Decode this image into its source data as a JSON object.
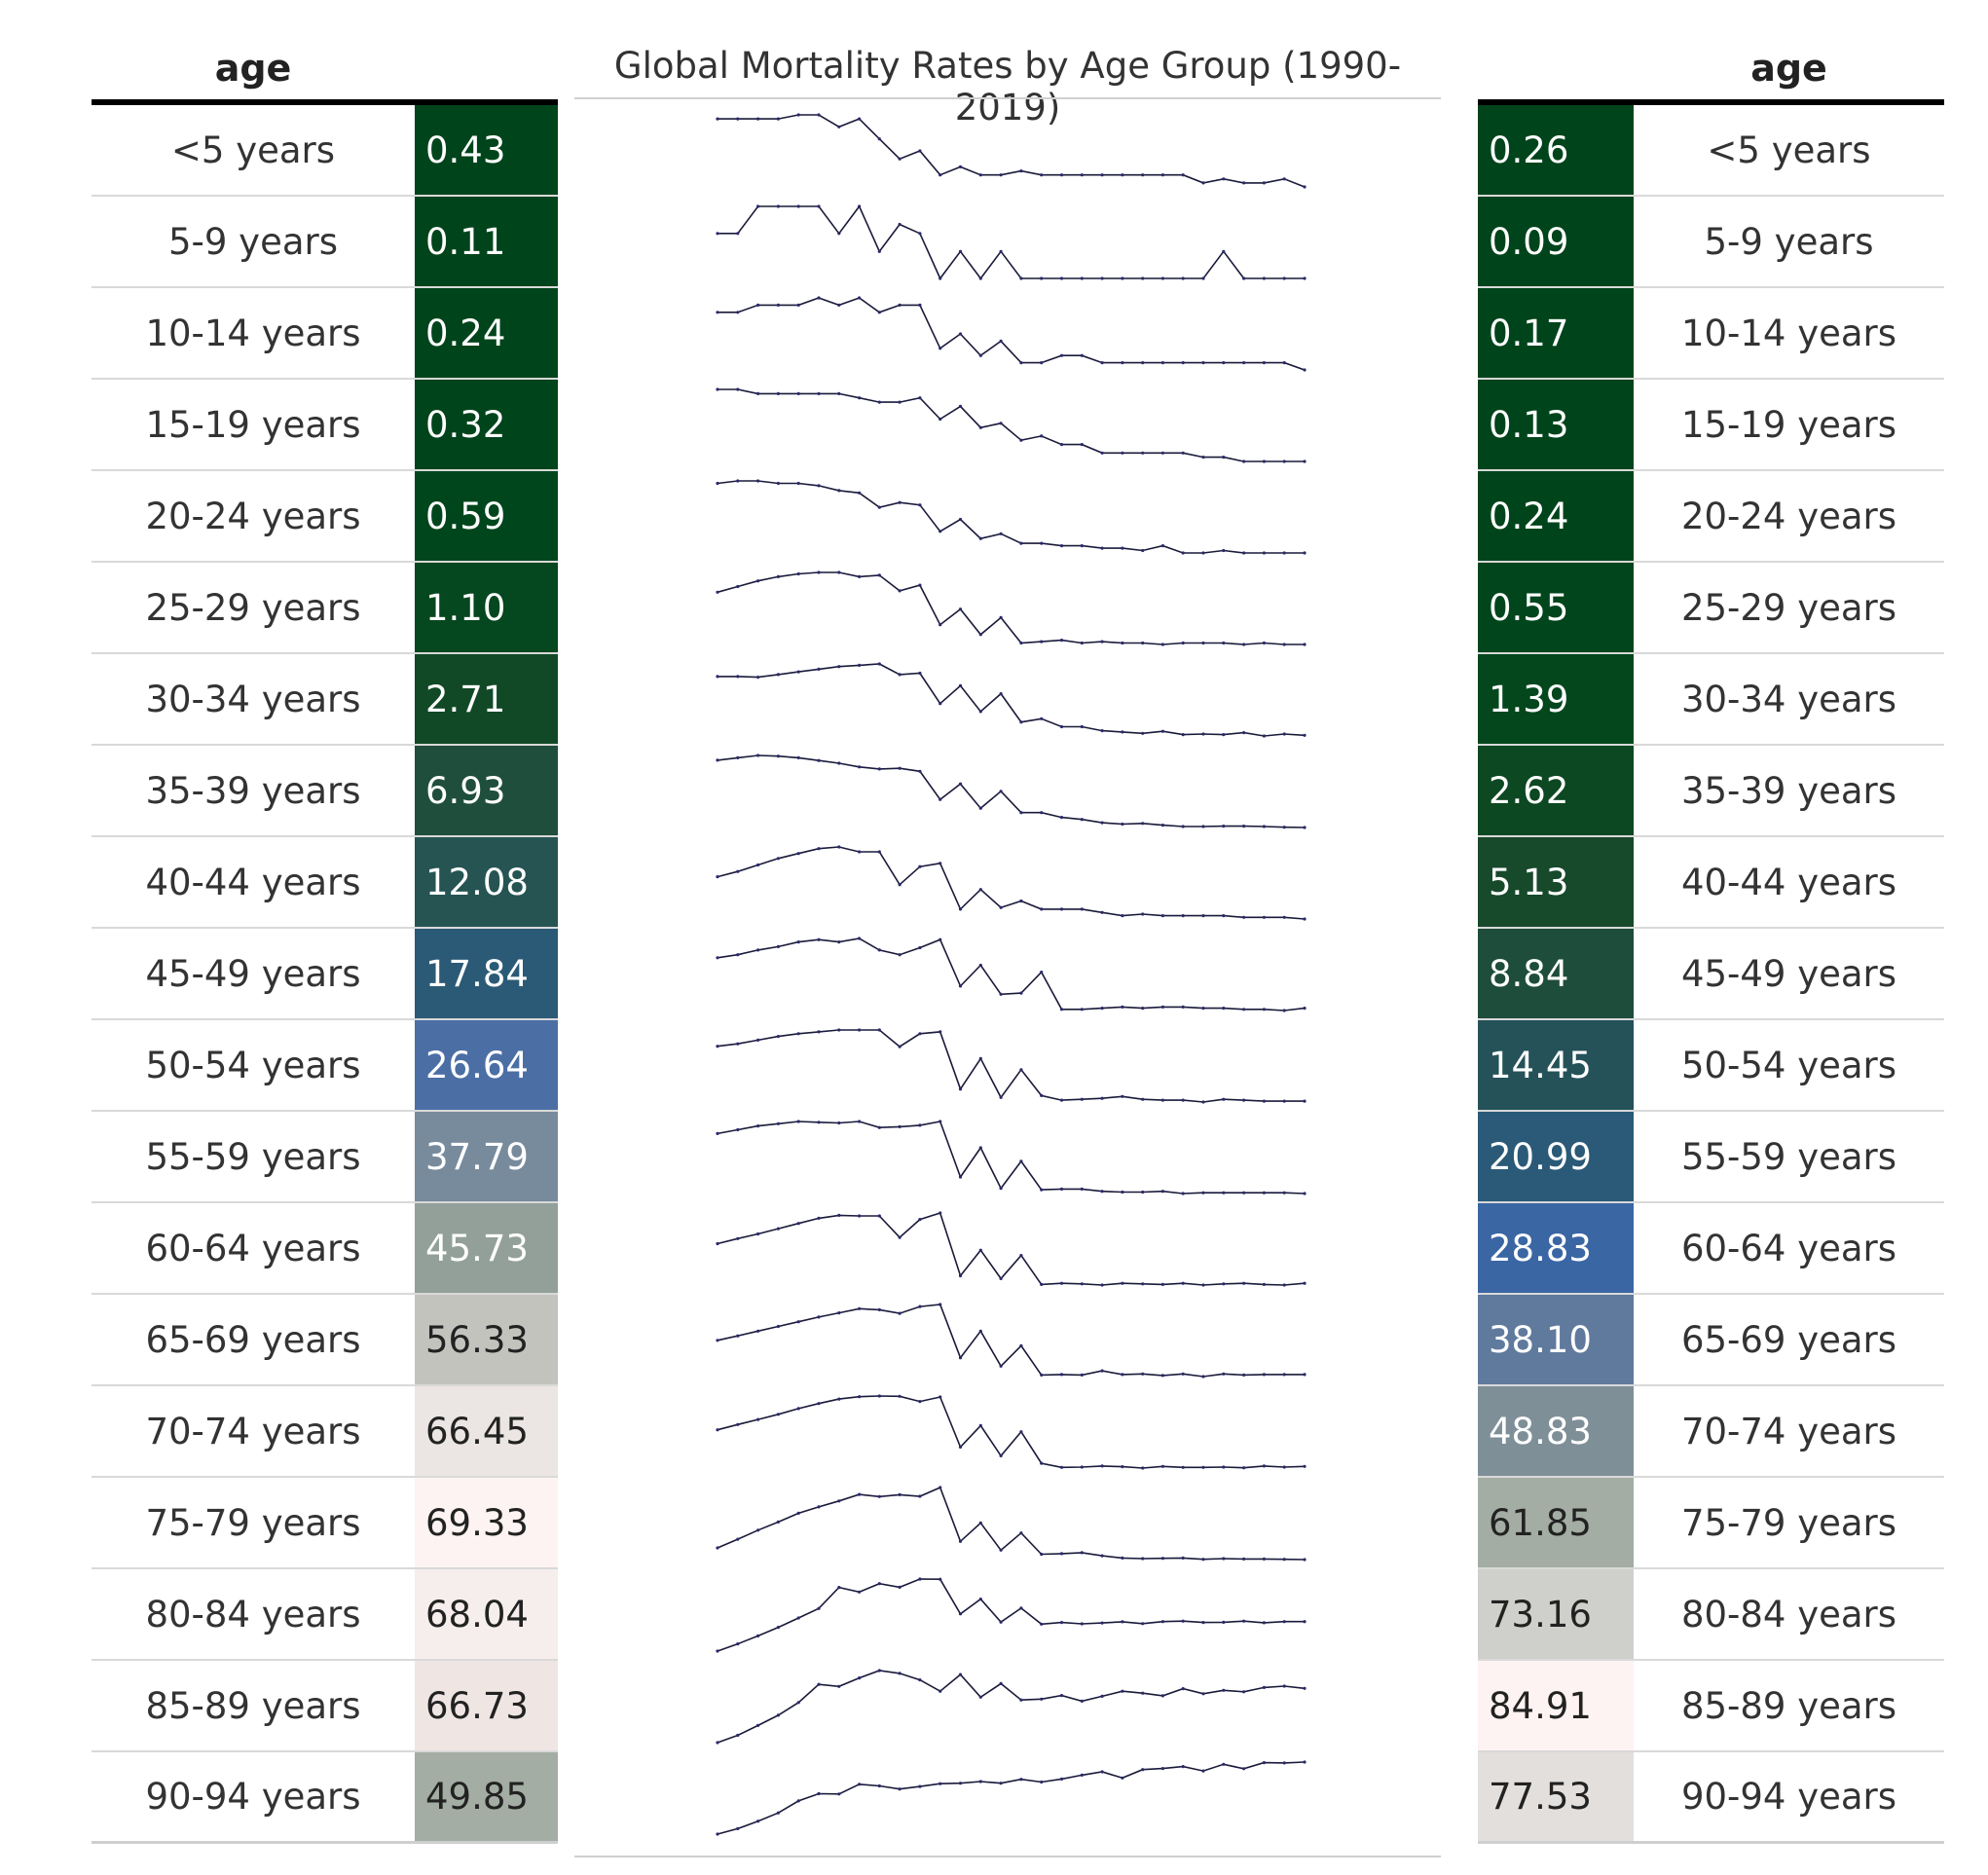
{
  "chart_data": {
    "type": "table",
    "title": "Global Mortality Rates by Age Group (1990-2019)",
    "columns": {
      "left_label_header": "age",
      "right_label_header": "age"
    },
    "rows": [
      {
        "age": "<5 years",
        "left_value": "0.43",
        "right_value": "0.26",
        "left_color": "#00441b",
        "right_color": "#00441b",
        "left_text_color": "#ffffff",
        "right_text_color": "#ffffff"
      },
      {
        "age": "5-9 years",
        "left_value": "0.11",
        "right_value": "0.09",
        "left_color": "#00441b",
        "right_color": "#00441b",
        "left_text_color": "#ffffff",
        "right_text_color": "#ffffff"
      },
      {
        "age": "10-14 years",
        "left_value": "0.24",
        "right_value": "0.17",
        "left_color": "#00441b",
        "right_color": "#00441b",
        "left_text_color": "#ffffff",
        "right_text_color": "#ffffff"
      },
      {
        "age": "15-19 years",
        "left_value": "0.32",
        "right_value": "0.13",
        "left_color": "#00441b",
        "right_color": "#00441b",
        "left_text_color": "#ffffff",
        "right_text_color": "#ffffff"
      },
      {
        "age": "20-24 years",
        "left_value": "0.59",
        "right_value": "0.24",
        "left_color": "#00461c",
        "right_color": "#00441b",
        "left_text_color": "#ffffff",
        "right_text_color": "#ffffff"
      },
      {
        "age": "25-29 years",
        "left_value": "1.10",
        "right_value": "0.55",
        "left_color": "#05471e",
        "right_color": "#00451c",
        "left_text_color": "#ffffff",
        "right_text_color": "#ffffff"
      },
      {
        "age": "30-34 years",
        "left_value": "2.71",
        "right_value": "1.39",
        "left_color": "#114926",
        "right_color": "#04471d",
        "left_text_color": "#ffffff",
        "right_text_color": "#ffffff"
      },
      {
        "age": "35-39 years",
        "left_value": "6.93",
        "right_value": "2.62",
        "left_color": "#1f4f3c",
        "right_color": "#0c4821",
        "left_text_color": "#ffffff",
        "right_text_color": "#ffffff"
      },
      {
        "age": "40-44 years",
        "left_value": "12.08",
        "right_value": "5.13",
        "left_color": "#255453",
        "right_color": "#17492b",
        "left_text_color": "#ffffff",
        "right_text_color": "#ffffff"
      },
      {
        "age": "45-49 years",
        "left_value": "17.84",
        "right_value": "8.84",
        "left_color": "#2b5a76",
        "right_color": "#1e4d3b",
        "left_text_color": "#ffffff",
        "right_text_color": "#ffffff"
      },
      {
        "age": "50-54 years",
        "left_value": "26.64",
        "right_value": "14.45",
        "left_color": "#4b6fa5",
        "right_color": "#245258",
        "left_text_color": "#ffffff",
        "right_text_color": "#ffffff"
      },
      {
        "age": "55-59 years",
        "left_value": "37.79",
        "right_value": "20.99",
        "left_color": "#788b9d",
        "right_color": "#2a5a78",
        "left_text_color": "#ffffff",
        "right_text_color": "#ffffff"
      },
      {
        "age": "60-64 years",
        "left_value": "45.73",
        "right_value": "28.83",
        "left_color": "#93a09a",
        "right_color": "#3a66a3",
        "left_text_color": "#ffffff",
        "right_text_color": "#ffffff"
      },
      {
        "age": "65-69 years",
        "left_value": "56.33",
        "right_value": "38.10",
        "left_color": "#c3c3be",
        "right_color": "#607a9d",
        "left_text_color": "#222222",
        "right_text_color": "#ffffff"
      },
      {
        "age": "70-74 years",
        "left_value": "66.45",
        "right_value": "48.83",
        "left_color": "#ebe5e3",
        "right_color": "#7e8f98",
        "left_text_color": "#222222",
        "right_text_color": "#ffffff"
      },
      {
        "age": "75-79 years",
        "left_value": "69.33",
        "right_value": "61.85",
        "left_color": "#fdf3f2",
        "right_color": "#a3ada3",
        "left_text_color": "#222222",
        "right_text_color": "#222222"
      },
      {
        "age": "80-84 years",
        "left_value": "68.04",
        "right_value": "73.16",
        "left_color": "#f5eeec",
        "right_color": "#cfcfcb",
        "left_text_color": "#222222",
        "right_text_color": "#222222"
      },
      {
        "age": "85-89 years",
        "left_value": "66.73",
        "right_value": "84.91",
        "left_color": "#efe6e4",
        "right_color": "#fdf3f2",
        "left_text_color": "#222222",
        "right_text_color": "#222222"
      },
      {
        "age": "90-94 years",
        "left_value": "49.85",
        "right_value": "77.53",
        "left_color": "#a3ada3",
        "right_color": "#e2dfdd",
        "left_text_color": "#222222",
        "right_text_color": "#222222"
      }
    ],
    "sparklines": [
      [
        0.43,
        0.43,
        0.43,
        0.43,
        0.44,
        0.44,
        0.41,
        0.43,
        0.38,
        0.33,
        0.35,
        0.29,
        0.31,
        0.29,
        0.29,
        0.3,
        0.29,
        0.29,
        0.29,
        0.29,
        0.29,
        0.29,
        0.29,
        0.29,
        0.27,
        0.28,
        0.27,
        0.27,
        0.28,
        0.26
      ],
      [
        0.11,
        0.11,
        0.14,
        0.14,
        0.14,
        0.14,
        0.11,
        0.14,
        0.09,
        0.12,
        0.11,
        0.06,
        0.09,
        0.06,
        0.09,
        0.06,
        0.06,
        0.06,
        0.06,
        0.06,
        0.06,
        0.06,
        0.06,
        0.06,
        0.06,
        0.09,
        0.06,
        0.06,
        0.06,
        0.06
      ],
      [
        0.24,
        0.24,
        0.25,
        0.25,
        0.25,
        0.26,
        0.25,
        0.26,
        0.24,
        0.25,
        0.25,
        0.19,
        0.21,
        0.18,
        0.2,
        0.17,
        0.17,
        0.18,
        0.18,
        0.17,
        0.17,
        0.17,
        0.17,
        0.17,
        0.17,
        0.17,
        0.17,
        0.17,
        0.17,
        0.16
      ],
      [
        0.32,
        0.32,
        0.31,
        0.31,
        0.31,
        0.31,
        0.31,
        0.3,
        0.29,
        0.29,
        0.3,
        0.25,
        0.28,
        0.23,
        0.24,
        0.2,
        0.21,
        0.19,
        0.19,
        0.17,
        0.17,
        0.17,
        0.17,
        0.17,
        0.16,
        0.16,
        0.15,
        0.15,
        0.15,
        0.15
      ],
      [
        0.59,
        0.6,
        0.6,
        0.59,
        0.59,
        0.58,
        0.56,
        0.55,
        0.49,
        0.51,
        0.5,
        0.39,
        0.44,
        0.36,
        0.38,
        0.34,
        0.34,
        0.33,
        0.33,
        0.32,
        0.32,
        0.31,
        0.33,
        0.3,
        0.3,
        0.31,
        0.3,
        0.3,
        0.3,
        0.3
      ],
      [
        1.1,
        1.14,
        1.18,
        1.21,
        1.23,
        1.24,
        1.24,
        1.21,
        1.22,
        1.11,
        1.15,
        0.87,
        0.98,
        0.8,
        0.92,
        0.74,
        0.75,
        0.76,
        0.74,
        0.75,
        0.74,
        0.74,
        0.73,
        0.74,
        0.74,
        0.74,
        0.73,
        0.74,
        0.73,
        0.73
      ],
      [
        2.71,
        2.71,
        2.7,
        2.74,
        2.78,
        2.82,
        2.86,
        2.88,
        2.9,
        2.74,
        2.76,
        2.3,
        2.57,
        2.18,
        2.45,
        2.02,
        2.07,
        1.95,
        1.95,
        1.89,
        1.87,
        1.85,
        1.88,
        1.83,
        1.84,
        1.83,
        1.86,
        1.81,
        1.84,
        1.82
      ],
      [
        6.93,
        7.0,
        7.07,
        7.05,
        7.0,
        6.92,
        6.84,
        6.73,
        6.67,
        6.69,
        6.6,
        5.77,
        6.23,
        5.51,
        6.01,
        5.38,
        5.38,
        5.24,
        5.18,
        5.08,
        5.04,
        5.06,
        5.01,
        4.97,
        4.97,
        4.98,
        4.98,
        4.97,
        4.95,
        4.94
      ],
      [
        12.08,
        12.4,
        12.8,
        13.2,
        13.5,
        13.8,
        13.9,
        13.6,
        13.6,
        11.6,
        12.7,
        12.9,
        10.1,
        11.3,
        10.2,
        10.6,
        10.1,
        10.1,
        10.1,
        9.9,
        9.7,
        9.8,
        9.7,
        9.7,
        9.7,
        9.7,
        9.6,
        9.6,
        9.6,
        9.5
      ],
      [
        17.84,
        18.1,
        18.5,
        18.8,
        19.2,
        19.4,
        19.2,
        19.5,
        18.5,
        18.1,
        18.7,
        19.4,
        15.4,
        17.2,
        14.7,
        14.8,
        16.6,
        13.4,
        13.4,
        13.5,
        13.6,
        13.5,
        13.6,
        13.6,
        13.5,
        13.5,
        13.4,
        13.4,
        13.3,
        13.5
      ],
      [
        26.64,
        26.9,
        27.3,
        27.7,
        28.0,
        28.2,
        28.4,
        28.4,
        28.4,
        26.6,
        28.0,
        28.2,
        22.0,
        25.3,
        21.1,
        24.1,
        21.3,
        20.8,
        20.9,
        21.0,
        21.2,
        20.9,
        20.8,
        20.8,
        20.6,
        20.9,
        20.8,
        20.7,
        20.7,
        20.7
      ],
      [
        37.79,
        38.3,
        38.8,
        39.1,
        39.4,
        39.3,
        39.2,
        39.4,
        38.6,
        38.7,
        38.9,
        39.4,
        32.0,
        35.9,
        30.5,
        34.1,
        30.3,
        30.4,
        30.4,
        30.1,
        30.0,
        30.0,
        30.1,
        29.8,
        29.9,
        29.9,
        29.9,
        29.9,
        29.9,
        29.8
      ],
      [
        45.73,
        46.6,
        47.4,
        48.3,
        49.2,
        50.1,
        50.6,
        50.5,
        50.5,
        46.8,
        49.9,
        51.0,
        40.2,
        44.6,
        39.7,
        43.7,
        38.7,
        38.9,
        38.8,
        38.6,
        38.9,
        38.8,
        38.7,
        38.9,
        38.6,
        38.8,
        38.9,
        38.7,
        38.6,
        38.9
      ],
      [
        56.33,
        57.2,
        58.1,
        59.0,
        59.9,
        60.8,
        61.6,
        62.4,
        62.2,
        61.5,
        62.8,
        63.2,
        53.0,
        58.1,
        51.4,
        55.3,
        49.7,
        49.8,
        49.7,
        50.5,
        49.8,
        49.9,
        49.6,
        49.9,
        49.4,
        49.9,
        49.7,
        49.8,
        49.8,
        49.8
      ],
      [
        66.45,
        68.0,
        69.5,
        71.0,
        72.7,
        74.2,
        75.5,
        76.2,
        76.4,
        76.3,
        74.8,
        76.1,
        61.4,
        67.7,
        58.8,
        65.9,
        56.6,
        55.4,
        55.5,
        55.8,
        55.6,
        55.2,
        55.7,
        55.4,
        55.4,
        55.5,
        55.3,
        55.8,
        55.5,
        55.7
      ],
      [
        69.33,
        72.1,
        75.0,
        77.6,
        80.4,
        82.4,
        84.3,
        86.4,
        85.7,
        86.3,
        85.8,
        88.6,
        71.4,
        77.3,
        68.6,
        74.1,
        67.3,
        67.5,
        67.8,
        66.8,
        66.1,
        65.9,
        66.0,
        66.1,
        65.7,
        65.9,
        65.8,
        65.8,
        65.7,
        65.6
      ],
      [
        68.04,
        71.2,
        74.7,
        78.5,
        82.6,
        86.8,
        96.0,
        94.0,
        97.7,
        96.1,
        99.7,
        99.6,
        84.4,
        90.9,
        80.8,
        86.9,
        79.9,
        80.6,
        80.0,
        80.4,
        80.9,
        80.1,
        81.0,
        81.2,
        80.6,
        80.7,
        81.2,
        80.5,
        81.0,
        81.0
      ],
      [
        66.73,
        69.3,
        72.8,
        76.4,
        80.9,
        87.3,
        86.6,
        89.6,
        92.2,
        91.2,
        88.9,
        84.9,
        90.8,
        82.8,
        87.6,
        81.8,
        82.1,
        83.4,
        81.4,
        83.1,
        84.9,
        84.2,
        83.3,
        85.8,
        84.0,
        85.2,
        84.7,
        86.2,
        86.7,
        85.9
      ],
      [
        49.85,
        51.8,
        54.5,
        57.5,
        61.8,
        64.4,
        64.3,
        67.8,
        67.2,
        66.1,
        67.0,
        68.0,
        68.2,
        68.8,
        68.2,
        69.6,
        68.6,
        69.7,
        71.1,
        72.3,
        70.1,
        73.1,
        73.5,
        74.2,
        72.6,
        75.0,
        73.4,
        75.6,
        75.5,
        75.8
      ]
    ]
  }
}
